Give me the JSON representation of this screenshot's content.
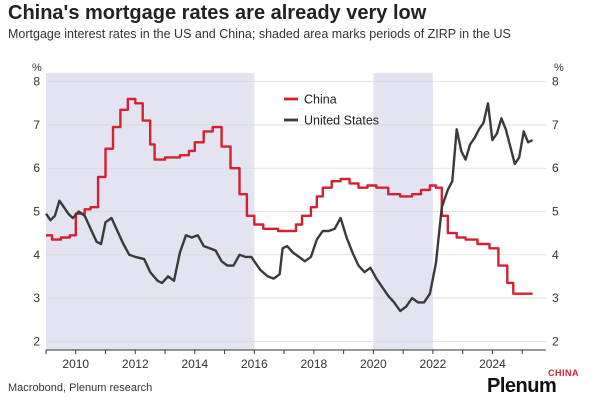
{
  "title": "China's mortgage rates are already very low",
  "subtitle": "Mortgage interest rates in the US and China; shaded area marks periods of ZIRP in the US",
  "source": "Macrobond, Plenum research",
  "brand": {
    "name": "Plenum",
    "sub": "CHINA"
  },
  "colors": {
    "china": "#d42030",
    "us": "#3a3a3a",
    "shade": "#e3e3f1",
    "grid": "#d9d9d9"
  },
  "chart_data": {
    "type": "line",
    "ylabel_left": "%",
    "ylabel_right": "%",
    "xlim": [
      2009.0,
      2025.8
    ],
    "ylim": [
      1.8,
      8.2
    ],
    "y_ticks": [
      2,
      3,
      4,
      5,
      6,
      7,
      8
    ],
    "x_ticks": [
      2010,
      2012,
      2014,
      2016,
      2018,
      2020,
      2022,
      2024
    ],
    "grid": "horizontal",
    "legend_position": "top-center",
    "shaded_periods": [
      [
        2009.0,
        2016.0
      ],
      [
        2020.0,
        2022.0
      ]
    ],
    "series": [
      {
        "name": "China",
        "step": true,
        "points": [
          [
            2009.0,
            4.45
          ],
          [
            2009.2,
            4.35
          ],
          [
            2009.5,
            4.4
          ],
          [
            2009.8,
            4.45
          ],
          [
            2010.0,
            4.95
          ],
          [
            2010.3,
            5.05
          ],
          [
            2010.5,
            5.1
          ],
          [
            2010.75,
            5.8
          ],
          [
            2011.0,
            6.45
          ],
          [
            2011.25,
            6.95
          ],
          [
            2011.5,
            7.35
          ],
          [
            2011.75,
            7.6
          ],
          [
            2012.0,
            7.5
          ],
          [
            2012.25,
            7.1
          ],
          [
            2012.5,
            6.55
          ],
          [
            2012.65,
            6.2
          ],
          [
            2013.0,
            6.25
          ],
          [
            2013.5,
            6.3
          ],
          [
            2013.8,
            6.4
          ],
          [
            2014.0,
            6.6
          ],
          [
            2014.3,
            6.85
          ],
          [
            2014.6,
            6.95
          ],
          [
            2014.9,
            6.5
          ],
          [
            2015.2,
            6.0
          ],
          [
            2015.5,
            5.4
          ],
          [
            2015.75,
            4.9
          ],
          [
            2016.0,
            4.7
          ],
          [
            2016.3,
            4.6
          ],
          [
            2016.8,
            4.55
          ],
          [
            2017.2,
            4.55
          ],
          [
            2017.4,
            4.7
          ],
          [
            2017.6,
            4.9
          ],
          [
            2017.9,
            5.1
          ],
          [
            2018.1,
            5.35
          ],
          [
            2018.3,
            5.55
          ],
          [
            2018.6,
            5.7
          ],
          [
            2018.9,
            5.75
          ],
          [
            2019.2,
            5.65
          ],
          [
            2019.5,
            5.55
          ],
          [
            2019.8,
            5.6
          ],
          [
            2020.1,
            5.55
          ],
          [
            2020.5,
            5.4
          ],
          [
            2020.9,
            5.35
          ],
          [
            2021.3,
            5.4
          ],
          [
            2021.6,
            5.5
          ],
          [
            2021.9,
            5.6
          ],
          [
            2022.1,
            5.55
          ],
          [
            2022.3,
            4.9
          ],
          [
            2022.5,
            4.5
          ],
          [
            2022.8,
            4.4
          ],
          [
            2023.1,
            4.35
          ],
          [
            2023.5,
            4.25
          ],
          [
            2023.9,
            4.15
          ],
          [
            2024.2,
            3.75
          ],
          [
            2024.5,
            3.35
          ],
          [
            2024.7,
            3.1
          ],
          [
            2024.95,
            3.1
          ],
          [
            2025.1,
            3.1
          ],
          [
            2025.35,
            3.1
          ]
        ]
      },
      {
        "name": "United States",
        "step": false,
        "points": [
          [
            2009.0,
            4.95
          ],
          [
            2009.15,
            4.8
          ],
          [
            2009.3,
            4.9
          ],
          [
            2009.45,
            5.25
          ],
          [
            2009.6,
            5.1
          ],
          [
            2009.75,
            4.95
          ],
          [
            2009.9,
            4.85
          ],
          [
            2010.1,
            5.0
          ],
          [
            2010.3,
            4.9
          ],
          [
            2010.5,
            4.6
          ],
          [
            2010.7,
            4.3
          ],
          [
            2010.85,
            4.25
          ],
          [
            2011.0,
            4.75
          ],
          [
            2011.2,
            4.85
          ],
          [
            2011.4,
            4.55
          ],
          [
            2011.6,
            4.25
          ],
          [
            2011.8,
            4.0
          ],
          [
            2012.0,
            3.95
          ],
          [
            2012.3,
            3.9
          ],
          [
            2012.5,
            3.6
          ],
          [
            2012.75,
            3.4
          ],
          [
            2012.9,
            3.35
          ],
          [
            2013.1,
            3.5
          ],
          [
            2013.3,
            3.4
          ],
          [
            2013.5,
            4.05
          ],
          [
            2013.7,
            4.45
          ],
          [
            2013.9,
            4.4
          ],
          [
            2014.1,
            4.45
          ],
          [
            2014.3,
            4.2
          ],
          [
            2014.5,
            4.15
          ],
          [
            2014.7,
            4.1
          ],
          [
            2014.9,
            3.85
          ],
          [
            2015.1,
            3.75
          ],
          [
            2015.3,
            3.75
          ],
          [
            2015.5,
            4.0
          ],
          [
            2015.7,
            3.95
          ],
          [
            2015.9,
            3.95
          ],
          [
            2016.0,
            3.85
          ],
          [
            2016.2,
            3.65
          ],
          [
            2016.45,
            3.5
          ],
          [
            2016.65,
            3.45
          ],
          [
            2016.85,
            3.55
          ],
          [
            2016.95,
            4.15
          ],
          [
            2017.1,
            4.2
          ],
          [
            2017.3,
            4.05
          ],
          [
            2017.5,
            3.95
          ],
          [
            2017.7,
            3.85
          ],
          [
            2017.9,
            3.95
          ],
          [
            2018.1,
            4.35
          ],
          [
            2018.3,
            4.55
          ],
          [
            2018.5,
            4.55
          ],
          [
            2018.7,
            4.6
          ],
          [
            2018.9,
            4.85
          ],
          [
            2019.1,
            4.4
          ],
          [
            2019.3,
            4.05
          ],
          [
            2019.5,
            3.75
          ],
          [
            2019.7,
            3.6
          ],
          [
            2019.9,
            3.7
          ],
          [
            2020.1,
            3.45
          ],
          [
            2020.3,
            3.25
          ],
          [
            2020.5,
            3.05
          ],
          [
            2020.7,
            2.9
          ],
          [
            2020.9,
            2.7
          ],
          [
            2021.1,
            2.8
          ],
          [
            2021.3,
            3.0
          ],
          [
            2021.5,
            2.9
          ],
          [
            2021.7,
            2.9
          ],
          [
            2021.9,
            3.1
          ],
          [
            2022.1,
            3.8
          ],
          [
            2022.3,
            5.1
          ],
          [
            2022.5,
            5.5
          ],
          [
            2022.65,
            5.7
          ],
          [
            2022.8,
            6.9
          ],
          [
            2022.95,
            6.4
          ],
          [
            2023.1,
            6.2
          ],
          [
            2023.25,
            6.55
          ],
          [
            2023.4,
            6.7
          ],
          [
            2023.55,
            6.9
          ],
          [
            2023.7,
            7.05
          ],
          [
            2023.85,
            7.5
          ],
          [
            2024.0,
            6.65
          ],
          [
            2024.15,
            6.8
          ],
          [
            2024.3,
            7.15
          ],
          [
            2024.45,
            6.9
          ],
          [
            2024.6,
            6.5
          ],
          [
            2024.75,
            6.1
          ],
          [
            2024.9,
            6.25
          ],
          [
            2025.05,
            6.85
          ],
          [
            2025.2,
            6.6
          ],
          [
            2025.35,
            6.65
          ]
        ]
      }
    ]
  }
}
